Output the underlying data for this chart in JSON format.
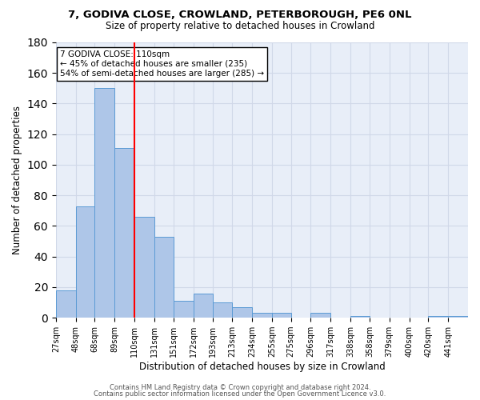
{
  "title1": "7, GODIVA CLOSE, CROWLAND, PETERBOROUGH, PE6 0NL",
  "title2": "Size of property relative to detached houses in Crowland",
  "xlabel": "Distribution of detached houses by size in Crowland",
  "ylabel": "Number of detached properties",
  "bar_labels": [
    "27sqm",
    "48sqm",
    "68sqm",
    "89sqm",
    "110sqm",
    "131sqm",
    "151sqm",
    "172sqm",
    "193sqm",
    "213sqm",
    "234sqm",
    "255sqm",
    "275sqm",
    "296sqm",
    "317sqm",
    "338sqm",
    "358sqm",
    "379sqm",
    "400sqm",
    "420sqm",
    "441sqm"
  ],
  "bar_values": [
    18,
    73,
    150,
    111,
    66,
    53,
    11,
    16,
    10,
    7,
    3,
    3,
    0,
    3,
    0,
    1,
    0,
    0,
    0,
    1,
    1
  ],
  "bar_color": "#aec6e8",
  "bar_edgecolor": "#5b9bd5",
  "vline_x": 110,
  "vline_color": "red",
  "ylim": [
    0,
    180
  ],
  "yticks": [
    0,
    20,
    40,
    60,
    80,
    100,
    120,
    140,
    160,
    180
  ],
  "annotation_title": "7 GODIVA CLOSE: 110sqm",
  "annotation_line1": "← 45% of detached houses are smaller (235)",
  "annotation_line2": "54% of semi-detached houses are larger (285) →",
  "grid_color": "#d0d8e8",
  "background_color": "#e8eef8",
  "footer1": "Contains HM Land Registry data © Crown copyright and database right 2024.",
  "footer2": "Contains public sector information licensed under the Open Government Licence v3.0.",
  "bin_edges": [
    27,
    48,
    68,
    89,
    110,
    131,
    151,
    172,
    193,
    213,
    234,
    255,
    275,
    296,
    317,
    338,
    358,
    379,
    400,
    420,
    441,
    462
  ]
}
